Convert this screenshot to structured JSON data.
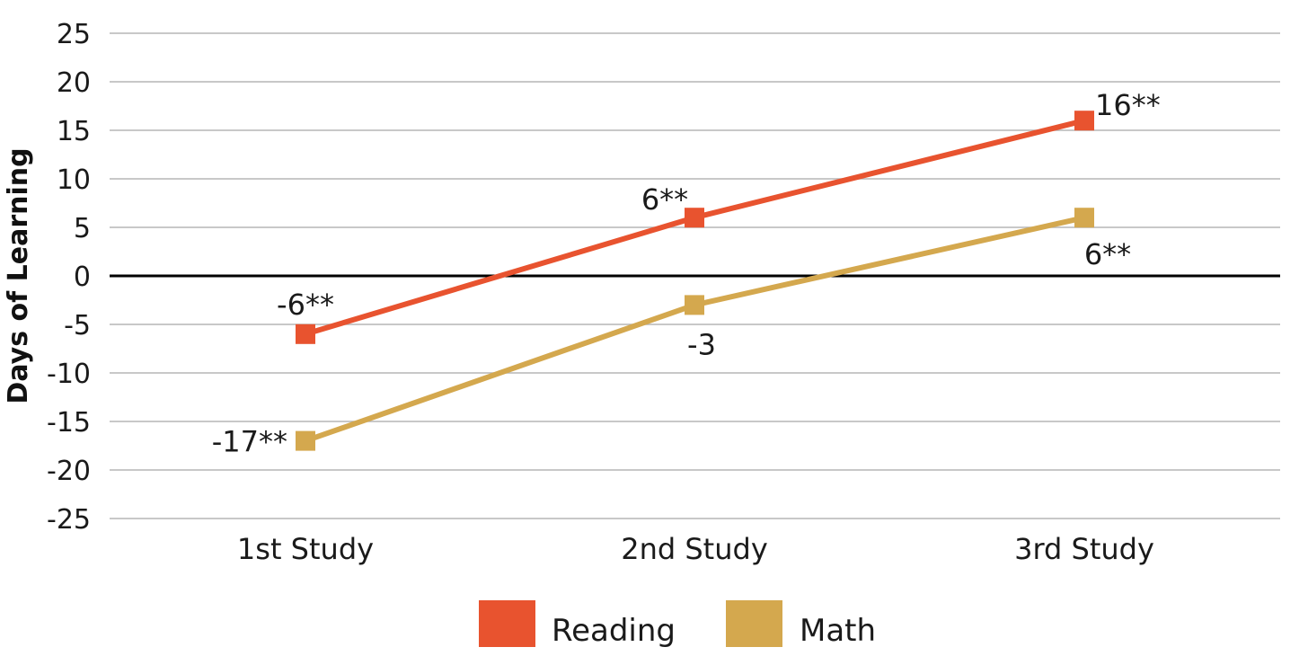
{
  "chart_data": {
    "type": "line",
    "ylabel": "Days of Learning",
    "xlabel": "",
    "categories": [
      "1st Study",
      "2nd Study",
      "3rd Study"
    ],
    "ylim": [
      -25,
      25
    ],
    "yticks": [
      25,
      20,
      15,
      10,
      5,
      0,
      -5,
      -10,
      -15,
      -20,
      -25
    ],
    "grid": true,
    "legend_position": "bottom-center",
    "series": [
      {
        "name": "Reading",
        "color": "#e8532f",
        "values": [
          -6,
          6,
          16
        ],
        "labels": [
          "-6**",
          "6**",
          "16**"
        ]
      },
      {
        "name": "Math",
        "color": "#d4a84e",
        "values": [
          -17,
          -3,
          6
        ],
        "labels": [
          "-17**",
          "-3",
          "6**"
        ]
      }
    ]
  }
}
